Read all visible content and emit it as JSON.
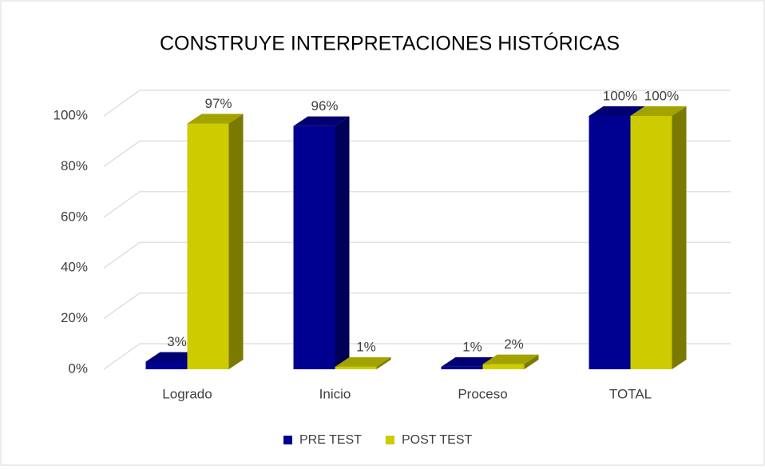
{
  "chart_data": {
    "type": "bar3d",
    "title": "CONSTRUYE INTERPRETACIONES HISTÓRICAS",
    "categories": [
      "Logrado",
      "Inicio",
      "Proceso",
      "TOTAL"
    ],
    "series": [
      {
        "name": "PRE TEST",
        "color": "#000090",
        "values": [
          3,
          96,
          1,
          100
        ],
        "value_labels": [
          "3%",
          "96%",
          "1%",
          "100%"
        ]
      },
      {
        "name": "POST TEST",
        "color": "#cccc00",
        "values": [
          97,
          1,
          2,
          100
        ],
        "value_labels": [
          "97%",
          "1%",
          "2%",
          "100%"
        ]
      }
    ],
    "ylim": [
      0,
      100
    ],
    "yticks": [
      {
        "value": 0,
        "label": "0%"
      },
      {
        "value": 20,
        "label": "20%"
      },
      {
        "value": 40,
        "label": "40%"
      },
      {
        "value": 60,
        "label": "60%"
      },
      {
        "value": 80,
        "label": "80%"
      },
      {
        "value": 100,
        "label": "100%"
      }
    ],
    "grid": true,
    "legend": "bottom"
  }
}
